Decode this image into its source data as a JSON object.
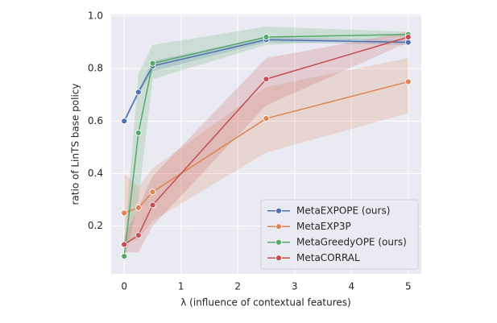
{
  "chart_data": {
    "type": "line",
    "x_label": "λ (influence of contextual features)",
    "y_label": "ratio of LinTS base policy",
    "x": [
      0,
      0.25,
      0.5,
      2.5,
      5
    ],
    "series": [
      {
        "name": "MetaEXPOPE (ours)",
        "color": "#4c72b0",
        "values": [
          0.6,
          0.71,
          0.81,
          0.91,
          0.9
        ],
        "lower": [
          0.59,
          0.7,
          0.79,
          0.9,
          0.89
        ],
        "upper": [
          0.61,
          0.72,
          0.83,
          0.92,
          0.91
        ]
      },
      {
        "name": "MetaEXP3P",
        "color": "#dd8452",
        "values": [
          0.25,
          0.27,
          0.33,
          0.61,
          0.75
        ],
        "lower": [
          0.13,
          0.15,
          0.22,
          0.48,
          0.63
        ],
        "upper": [
          0.4,
          0.35,
          0.42,
          0.73,
          0.84
        ]
      },
      {
        "name": "MetaGreedyOPE (ours)",
        "color": "#55a868",
        "values": [
          0.085,
          0.555,
          0.82,
          0.92,
          0.93
        ],
        "lower": [
          0.06,
          0.3,
          0.76,
          0.89,
          0.92
        ],
        "upper": [
          0.13,
          0.78,
          0.89,
          0.96,
          0.94
        ]
      },
      {
        "name": "MetaCORRAL",
        "color": "#c44e52",
        "values": [
          0.13,
          0.165,
          0.28,
          0.76,
          0.92
        ],
        "lower": [
          0.1,
          0.1,
          0.2,
          0.66,
          0.9
        ],
        "upper": [
          0.16,
          0.27,
          0.39,
          0.84,
          0.94
        ]
      }
    ],
    "xlim": [
      -0.23,
      5.23
    ],
    "ylim": [
      0.018,
      1.006
    ],
    "xticks": [
      0,
      1,
      2,
      3,
      4,
      5
    ],
    "yticks": [
      0.2,
      0.4,
      0.6,
      0.8,
      {
        "value": 1,
        "label": "1.0"
      }
    ],
    "grid": true,
    "legend": "lower right"
  }
}
